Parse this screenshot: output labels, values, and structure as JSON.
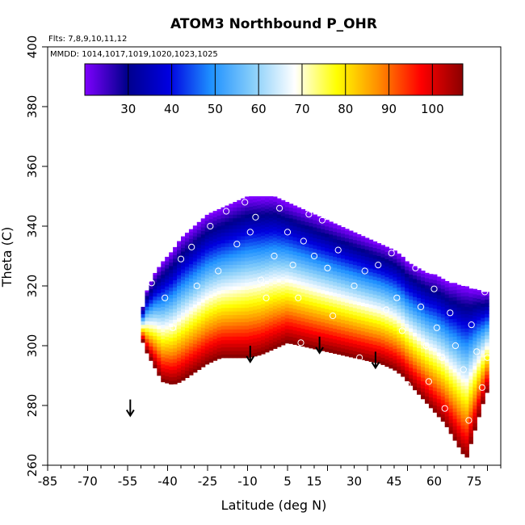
{
  "chart_data": {
    "type": "heatmap",
    "title": "ATOM3 Northbound P_OHR",
    "flights_note": "Flts: 7,8,9,10,11,12",
    "dates_note": "MMDD: 1014,1017,1019,1020,1023,1025",
    "xlabel": "Latitude (deg N)",
    "ylabel": "Theta (C)",
    "xlim": [
      -85,
      85
    ],
    "ylim": [
      260,
      400
    ],
    "x_tick_labels": [
      "-85",
      "-70",
      "-55",
      "-40",
      "-25",
      "-10",
      "5",
      "15",
      "30",
      "45",
      "60",
      "75"
    ],
    "y_tick_labels": [
      "260",
      "280",
      "300",
      "320",
      "340",
      "360",
      "380",
      "400"
    ],
    "colorbar": {
      "range": [
        20,
        107
      ],
      "tick_labels": [
        "30",
        "40",
        "50",
        "60",
        "70",
        "80",
        "90",
        "100"
      ],
      "colors": [
        "#7f00ff",
        "#00008b",
        "#0000e0",
        "#1e90ff",
        "#87cefa",
        "#ffffff",
        "#ffff00",
        "#ff8c00",
        "#ff0000",
        "#8b0000"
      ]
    },
    "field_boundary": {
      "latitude": [
        -50,
        -48,
        -45,
        -42,
        -38,
        -35,
        -30,
        -25,
        -20,
        -15,
        -10,
        -5,
        0,
        5,
        10,
        15,
        20,
        25,
        30,
        35,
        40,
        45,
        48,
        50,
        52,
        54,
        56,
        58,
        60,
        62,
        64,
        66,
        68,
        70,
        72,
        74,
        76,
        78,
        80
      ],
      "theta_top": [
        310,
        318,
        324,
        328,
        332,
        336,
        340,
        344,
        346,
        348,
        350,
        350,
        350,
        348,
        346,
        344,
        342,
        340,
        338,
        336,
        334,
        332,
        330,
        328,
        327,
        326,
        325,
        324,
        324,
        323,
        322,
        321,
        321,
        320,
        320,
        319,
        319,
        318,
        318
      ],
      "theta_bottom": [
        303,
        298,
        293,
        288,
        287,
        288,
        291,
        294,
        296,
        296,
        296,
        297,
        299,
        301,
        300,
        299,
        298,
        297,
        296,
        295,
        294,
        292,
        290,
        288,
        286,
        284,
        282,
        280,
        278,
        276,
        274,
        271,
        268,
        265,
        262,
        268,
        274,
        280,
        285
      ]
    },
    "flight_markers_latitude": [
      -54,
      -9,
      17,
      38
    ],
    "flight_markers_theta": [
      282,
      300,
      303,
      298
    ],
    "observation_points": [
      {
        "lat": -46,
        "theta": 321
      },
      {
        "lat": -41,
        "theta": 316
      },
      {
        "lat": -38,
        "theta": 306
      },
      {
        "lat": -35,
        "theta": 329
      },
      {
        "lat": -31,
        "theta": 333
      },
      {
        "lat": -29,
        "theta": 320
      },
      {
        "lat": -24,
        "theta": 340
      },
      {
        "lat": -21,
        "theta": 325
      },
      {
        "lat": -18,
        "theta": 345
      },
      {
        "lat": -14,
        "theta": 334
      },
      {
        "lat": -11,
        "theta": 348
      },
      {
        "lat": -9,
        "theta": 338
      },
      {
        "lat": -7,
        "theta": 343
      },
      {
        "lat": -5,
        "theta": 322
      },
      {
        "lat": -3,
        "theta": 316
      },
      {
        "lat": 0,
        "theta": 330
      },
      {
        "lat": 2,
        "theta": 346
      },
      {
        "lat": 5,
        "theta": 338
      },
      {
        "lat": 7,
        "theta": 327
      },
      {
        "lat": 9,
        "theta": 316
      },
      {
        "lat": 10,
        "theta": 301
      },
      {
        "lat": 11,
        "theta": 335
      },
      {
        "lat": 13,
        "theta": 344
      },
      {
        "lat": 15,
        "theta": 330
      },
      {
        "lat": 18,
        "theta": 342
      },
      {
        "lat": 20,
        "theta": 326
      },
      {
        "lat": 22,
        "theta": 310
      },
      {
        "lat": 24,
        "theta": 332
      },
      {
        "lat": 27,
        "theta": 342
      },
      {
        "lat": 30,
        "theta": 320
      },
      {
        "lat": 32,
        "theta": 296
      },
      {
        "lat": 34,
        "theta": 325
      },
      {
        "lat": 36,
        "theta": 338
      },
      {
        "lat": 39,
        "theta": 327
      },
      {
        "lat": 42,
        "theta": 312
      },
      {
        "lat": 44,
        "theta": 331
      },
      {
        "lat": 46,
        "theta": 316
      },
      {
        "lat": 48,
        "theta": 305
      },
      {
        "lat": 50,
        "theta": 287
      },
      {
        "lat": 51,
        "theta": 333
      },
      {
        "lat": 53,
        "theta": 326
      },
      {
        "lat": 55,
        "theta": 313
      },
      {
        "lat": 57,
        "theta": 300
      },
      {
        "lat": 58,
        "theta": 288
      },
      {
        "lat": 60,
        "theta": 319
      },
      {
        "lat": 61,
        "theta": 306
      },
      {
        "lat": 63,
        "theta": 296
      },
      {
        "lat": 64,
        "theta": 279
      },
      {
        "lat": 66,
        "theta": 311
      },
      {
        "lat": 68,
        "theta": 300
      },
      {
        "lat": 69,
        "theta": 323
      },
      {
        "lat": 71,
        "theta": 292
      },
      {
        "lat": 73,
        "theta": 275
      },
      {
        "lat": 74,
        "theta": 307
      },
      {
        "lat": 76,
        "theta": 298
      },
      {
        "lat": 78,
        "theta": 286
      },
      {
        "lat": 79,
        "theta": 318
      },
      {
        "lat": 80,
        "theta": 296
      }
    ]
  }
}
